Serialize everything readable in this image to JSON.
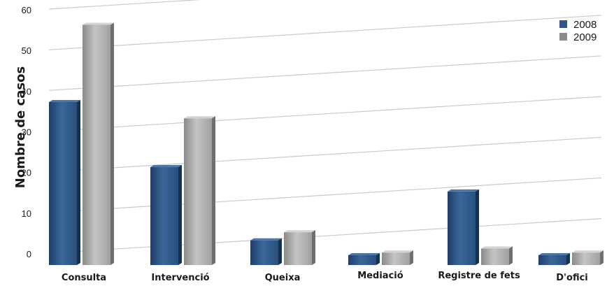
{
  "chart_data": {
    "type": "bar",
    "title": "",
    "xlabel": "",
    "ylabel": "Nombre de casos",
    "ylim": [
      0,
      60
    ],
    "yticks": [
      0,
      10,
      20,
      30,
      40,
      50,
      60
    ],
    "grid": true,
    "legend_position": "top-right",
    "categories": [
      "Consulta",
      "Intervenció",
      "Queixa",
      "Mediació",
      "Registre de fets",
      "D'ofici"
    ],
    "series": [
      {
        "name": "2008",
        "color": "#2f5686",
        "values": [
          38,
          22,
          4,
          0,
          16,
          0
        ]
      },
      {
        "name": "2009",
        "color": "#9a9a9a",
        "values": [
          57,
          34,
          6,
          1,
          2,
          1
        ]
      }
    ]
  }
}
